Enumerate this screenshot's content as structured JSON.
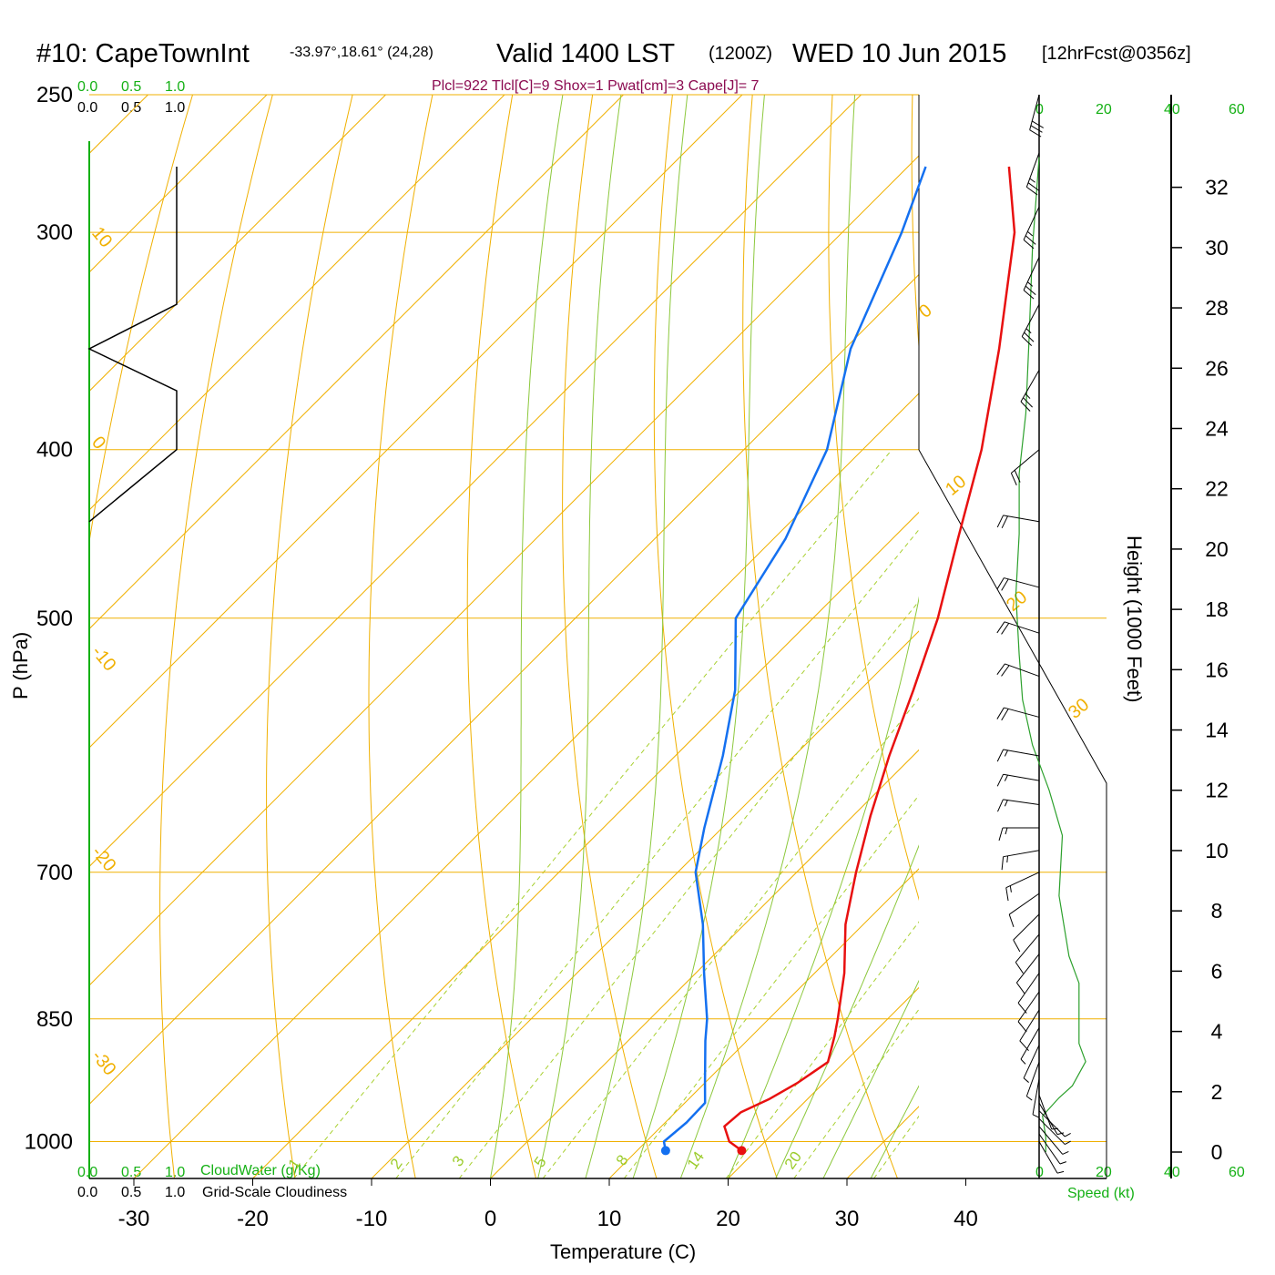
{
  "title": {
    "station": "#10: CapeTownInt",
    "coords": "-33.97°,18.61° (24,28)",
    "valid": "Valid 1400 LST",
    "zulu": "(1200Z)",
    "date": "WED 10 Jun 2015",
    "forecast": "[12hrFcst@0356z]"
  },
  "indices_line": "Plcl=922 Tlcl[C]=9 Shox=1 Pwat[cm]=3 Cape[J]= 7",
  "cloud_scale": {
    "ticks": [
      "0.0",
      "0.5",
      "1.0"
    ],
    "cloudwater_label": "CloudWater (g/Kg)",
    "cloudiness_label": "Grid-Scale Cloudiness"
  },
  "wind_scale": {
    "ticks": [
      "0",
      "20",
      "40",
      "60"
    ],
    "speed_label": "Speed (kt)"
  },
  "axis_labels": {
    "x": "Temperature (C)",
    "y": "P (hPa)",
    "height": "Height (1000 Feet)"
  },
  "colors": {
    "temperature": "#e81010",
    "dewpoint": "#1470f0",
    "isotherm": "#f0b000",
    "dry_adiabat": "#8cc83c",
    "mixing_ratio": "#a8d030",
    "cloud_green": "#14b014",
    "speed_line": "#2ca02c",
    "index_text": "#8b0a50"
  },
  "chart_data": {
    "type": "line",
    "diagram": "skew-T log-P",
    "x_ticks": [
      -30,
      -20,
      -10,
      0,
      10,
      20,
      30,
      40
    ],
    "pressure_ticks": [
      250,
      300,
      400,
      500,
      700,
      850,
      1000
    ],
    "height_ticks_kft": [
      0,
      2,
      4,
      6,
      8,
      10,
      12,
      14,
      16,
      18,
      20,
      22,
      24,
      26,
      28,
      30,
      32
    ],
    "isotherm_labels": [
      "10",
      "0",
      "-10",
      "-20",
      "-30"
    ],
    "dry_adiabat_labels": [
      "0",
      "10",
      "20",
      "30"
    ],
    "mixing_ratio_labels": [
      "1",
      "2",
      "3",
      "5",
      "8",
      "14",
      "20"
    ],
    "temperature_profile": [
      {
        "p": 1012,
        "t": 18.8
      },
      {
        "p": 1000,
        "t": 17.0
      },
      {
        "p": 980,
        "t": 15.3
      },
      {
        "p": 962,
        "t": 15.5
      },
      {
        "p": 945,
        "t": 16.8
      },
      {
        "p": 925,
        "t": 17.8
      },
      {
        "p": 900,
        "t": 18.6
      },
      {
        "p": 870,
        "t": 17.0
      },
      {
        "p": 850,
        "t": 15.8
      },
      {
        "p": 800,
        "t": 12.5
      },
      {
        "p": 750,
        "t": 8.5
      },
      {
        "p": 700,
        "t": 5.0
      },
      {
        "p": 650,
        "t": 1.5
      },
      {
        "p": 600,
        "t": -2.0
      },
      {
        "p": 550,
        "t": -5.5
      },
      {
        "p": 500,
        "t": -9.5
      },
      {
        "p": 450,
        "t": -14.5
      },
      {
        "p": 400,
        "t": -20.0
      },
      {
        "p": 350,
        "t": -27.0
      },
      {
        "p": 300,
        "t": -35.5
      },
      {
        "p": 275,
        "t": -41.5
      }
    ],
    "dewpoint_profile": [
      {
        "p": 1012,
        "t": 12.4
      },
      {
        "p": 1000,
        "t": 11.5
      },
      {
        "p": 975,
        "t": 11.8
      },
      {
        "p": 950,
        "t": 11.7
      },
      {
        "p": 925,
        "t": 10.0
      },
      {
        "p": 875,
        "t": 6.5
      },
      {
        "p": 850,
        "t": 4.8
      },
      {
        "p": 800,
        "t": 0.7
      },
      {
        "p": 750,
        "t": -3.5
      },
      {
        "p": 700,
        "t": -8.5
      },
      {
        "p": 660,
        "t": -11.5
      },
      {
        "p": 600,
        "t": -16.0
      },
      {
        "p": 550,
        "t": -20.5
      },
      {
        "p": 500,
        "t": -26.5
      },
      {
        "p": 450,
        "t": -29.0
      },
      {
        "p": 400,
        "t": -33.0
      },
      {
        "p": 350,
        "t": -39.5
      },
      {
        "p": 300,
        "t": -45.0
      },
      {
        "p": 275,
        "t": -48.5
      }
    ],
    "surface_markers": {
      "temperature": 18.8,
      "dewpoint": 12.4,
      "p": 1012
    },
    "cloudiness_profile": [
      {
        "p": 275,
        "c": 1.0
      },
      {
        "p": 300,
        "c": 1.0
      },
      {
        "p": 330,
        "c": 1.0
      },
      {
        "p": 350,
        "c": 0.0
      },
      {
        "p": 370,
        "c": 1.0
      },
      {
        "p": 400,
        "c": 1.0
      },
      {
        "p": 440,
        "c": 0.0
      }
    ],
    "wind_speed_profile_kt": [
      {
        "h": 0.0,
        "s": 2
      },
      {
        "h": 0.5,
        "s": 2
      },
      {
        "h": 1.2,
        "s": 1
      },
      {
        "h": 1.8,
        "s": 6
      },
      {
        "h": 2.2,
        "s": 10
      },
      {
        "h": 3.0,
        "s": 14
      },
      {
        "h": 3.6,
        "s": 12
      },
      {
        "h": 4.5,
        "s": 12
      },
      {
        "h": 5.6,
        "s": 12
      },
      {
        "h": 6.5,
        "s": 9
      },
      {
        "h": 8.5,
        "s": 6
      },
      {
        "h": 10.5,
        "s": 7
      },
      {
        "h": 12.0,
        "s": 3
      },
      {
        "h": 13.5,
        "s": -2
      },
      {
        "h": 15.0,
        "s": -5
      },
      {
        "h": 16.5,
        "s": -6
      },
      {
        "h": 18.5,
        "s": -7
      },
      {
        "h": 20.5,
        "s": -6
      },
      {
        "h": 22.5,
        "s": -6
      },
      {
        "h": 24.5,
        "s": -4
      },
      {
        "h": 27.0,
        "s": -3
      },
      {
        "h": 30.0,
        "s": -2
      },
      {
        "h": 33.0,
        "s": 0
      }
    ],
    "wind_barbs": [
      {
        "p": 1000,
        "dir": 150,
        "spd": 5
      },
      {
        "p": 990,
        "dir": 145,
        "spd": 5
      },
      {
        "p": 980,
        "dir": 140,
        "spd": 5
      },
      {
        "p": 970,
        "dir": 135,
        "spd": 5
      },
      {
        "p": 960,
        "dir": 135,
        "spd": 5
      },
      {
        "p": 950,
        "dir": 150,
        "spd": 5
      },
      {
        "p": 940,
        "dir": 160,
        "spd": 5
      },
      {
        "p": 920,
        "dir": 190,
        "spd": 5
      },
      {
        "p": 900,
        "dir": 200,
        "spd": 5
      },
      {
        "p": 880,
        "dir": 205,
        "spd": 5
      },
      {
        "p": 860,
        "dir": 210,
        "spd": 5
      },
      {
        "p": 840,
        "dir": 212,
        "spd": 10
      },
      {
        "p": 820,
        "dir": 215,
        "spd": 10
      },
      {
        "p": 800,
        "dir": 215,
        "spd": 10
      },
      {
        "p": 780,
        "dir": 218,
        "spd": 10
      },
      {
        "p": 760,
        "dir": 220,
        "spd": 10
      },
      {
        "p": 740,
        "dir": 225,
        "spd": 10
      },
      {
        "p": 720,
        "dir": 235,
        "spd": 10
      },
      {
        "p": 700,
        "dir": 245,
        "spd": 15
      },
      {
        "p": 680,
        "dir": 260,
        "spd": 15
      },
      {
        "p": 660,
        "dir": 270,
        "spd": 15
      },
      {
        "p": 640,
        "dir": 278,
        "spd": 15
      },
      {
        "p": 620,
        "dir": 280,
        "spd": 15
      },
      {
        "p": 600,
        "dir": 280,
        "spd": 15
      },
      {
        "p": 570,
        "dir": 285,
        "spd": 20
      },
      {
        "p": 540,
        "dir": 290,
        "spd": 20
      },
      {
        "p": 510,
        "dir": 288,
        "spd": 20
      },
      {
        "p": 480,
        "dir": 285,
        "spd": 20
      },
      {
        "p": 440,
        "dir": 280,
        "spd": 20
      },
      {
        "p": 400,
        "dir": 230,
        "spd": 20
      },
      {
        "p": 360,
        "dir": 210,
        "spd": 25
      },
      {
        "p": 330,
        "dir": 208,
        "spd": 25
      },
      {
        "p": 310,
        "dir": 205,
        "spd": 25
      },
      {
        "p": 290,
        "dir": 205,
        "spd": 25
      },
      {
        "p": 270,
        "dir": 200,
        "spd": 25
      },
      {
        "p": 250,
        "dir": 195,
        "spd": 30
      }
    ]
  }
}
